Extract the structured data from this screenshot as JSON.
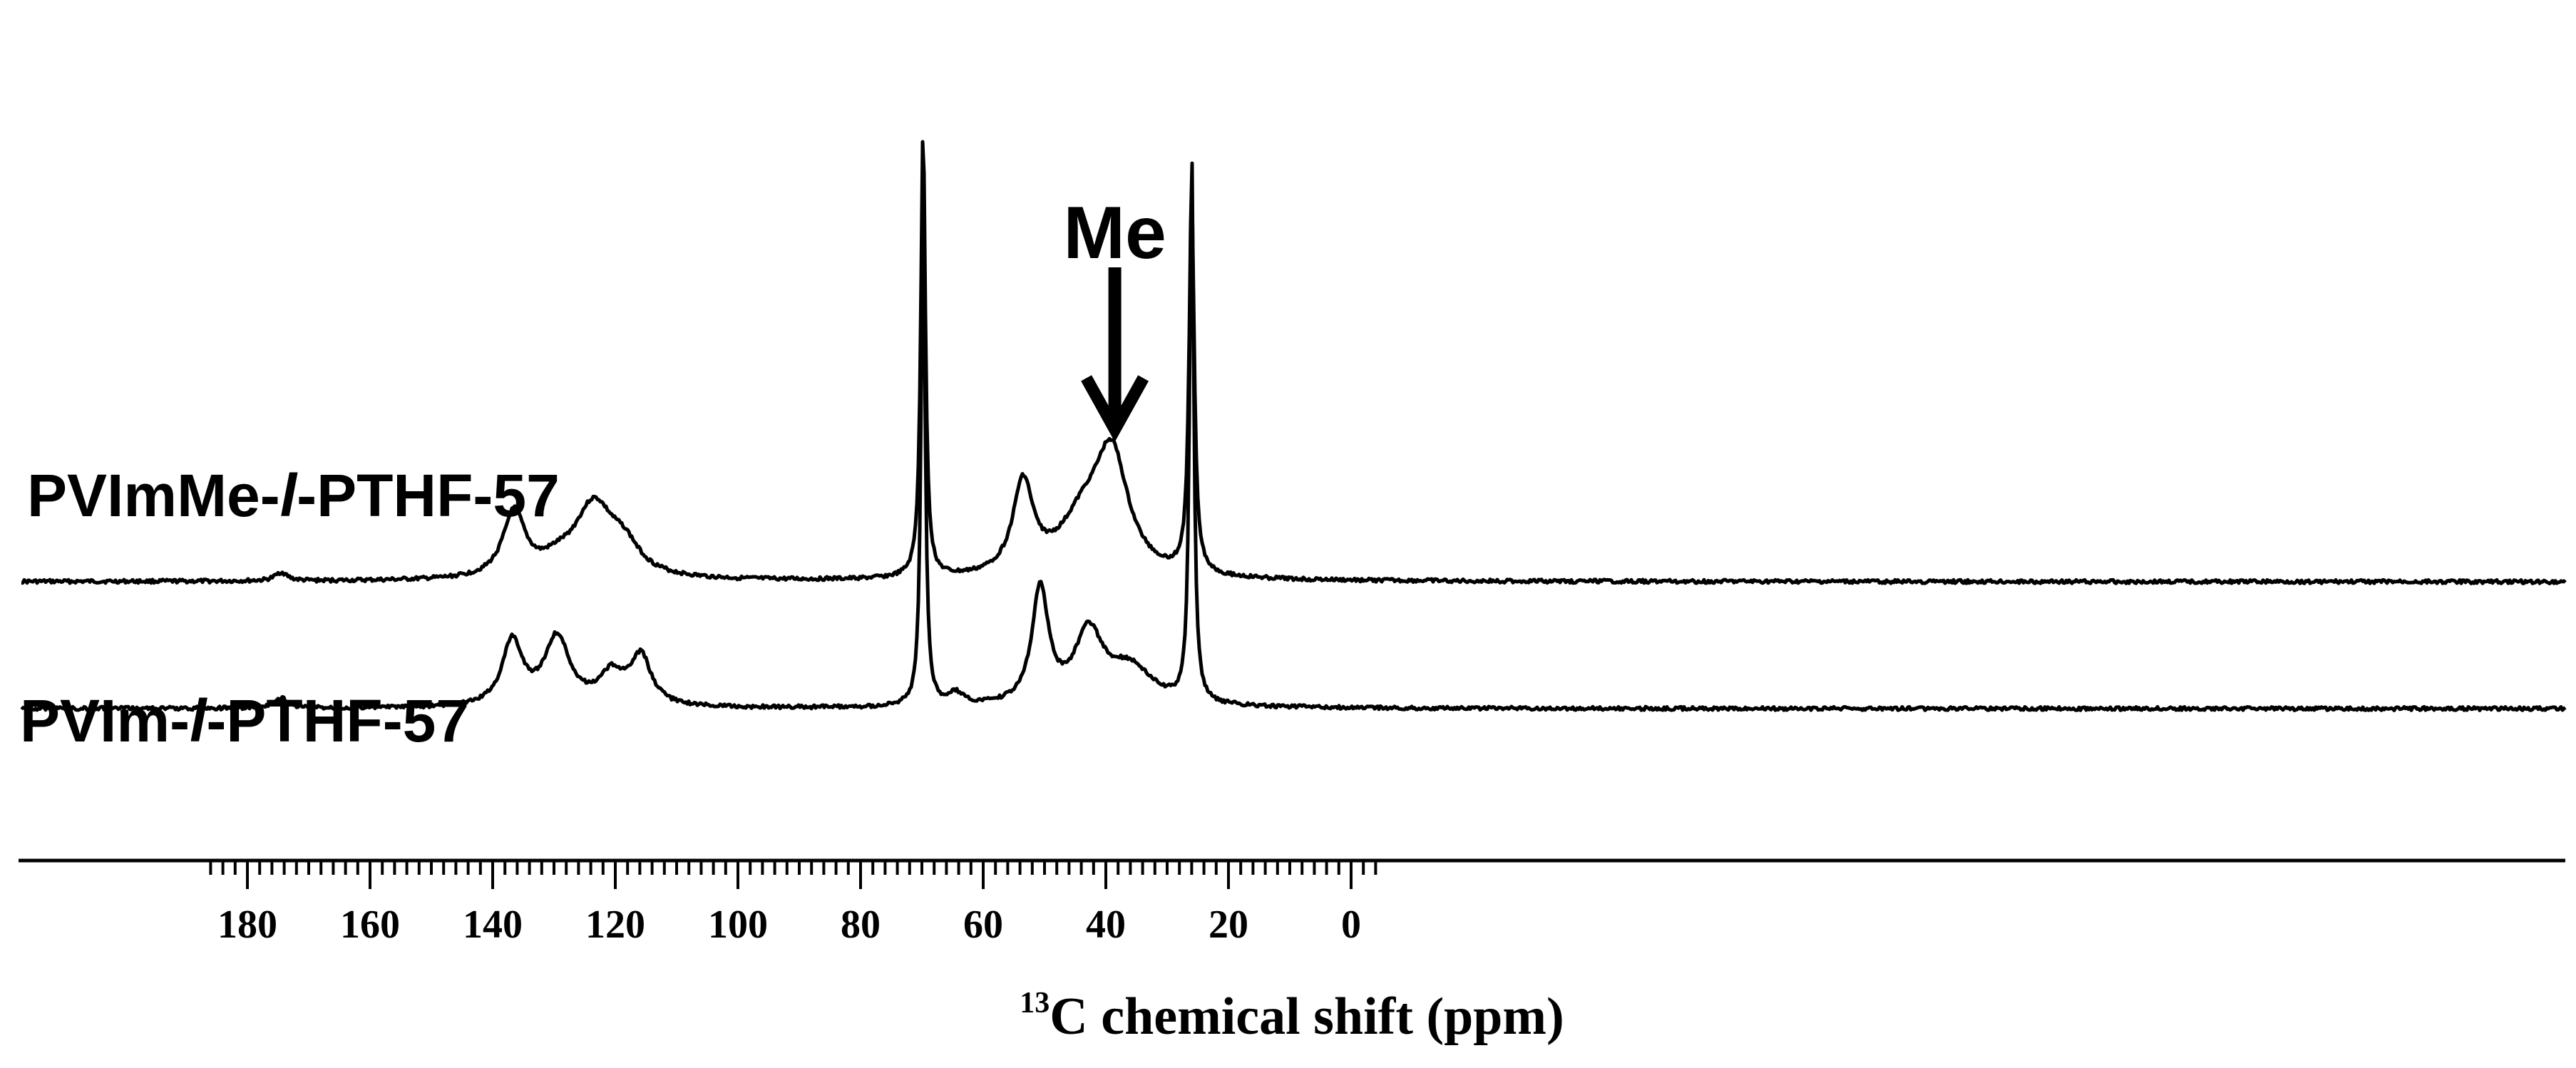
{
  "chart_data": {
    "type": "line",
    "title": "",
    "xlabel": {
      "superscript": "13",
      "text": "C chemical shift (ppm)"
    },
    "ylabel": "",
    "x_axis_reversed": true,
    "xlim": [
      186,
      -5
    ],
    "major_ticks": [
      180,
      160,
      140,
      120,
      100,
      80,
      60,
      40,
      20,
      0
    ],
    "major_tick_labels": [
      "180",
      "160",
      "140",
      "120",
      "100",
      "80",
      "60",
      "40",
      "20",
      "0"
    ],
    "minor_tick_step": 2,
    "y_axis_shown": false,
    "grid": false,
    "legend": "none (series labels placed beside traces)",
    "series": [
      {
        "name": "PVImMe-l-PTHF-57",
        "label_prefix": "PVImMe-",
        "label_italic": "l",
        "label_suffix": "-PTHF-57",
        "baseline_level": 1.0,
        "peaks": [
          {
            "ppm": 174.5,
            "height": 0.05,
            "width": 1.2
          },
          {
            "ppm": 136.5,
            "height": 0.38,
            "width": 2.2
          },
          {
            "ppm": 129.5,
            "height": 0.06,
            "width": 3.0
          },
          {
            "ppm": 123.5,
            "height": 0.43,
            "width": 4.0
          },
          {
            "ppm": 118.5,
            "height": 0.14,
            "width": 3.0
          },
          {
            "ppm": 69.8,
            "height": 2.62,
            "width": 0.45
          },
          {
            "ppm": 53.5,
            "height": 0.53,
            "width": 2.0
          },
          {
            "ppm": 43.5,
            "height": 0.32,
            "width": 5.0
          },
          {
            "ppm": 39.0,
            "height": 0.64,
            "width": 3.2
          },
          {
            "ppm": 26.0,
            "height": 2.22,
            "width": 0.5
          }
        ]
      },
      {
        "name": "PVIm-l-PTHF-57",
        "label_prefix": "PVIm-",
        "label_italic": "l",
        "label_suffix": "-PTHF-57",
        "baseline_level": 0.0,
        "peaks": [
          {
            "ppm": 174.5,
            "height": 0.06,
            "width": 1.3
          },
          {
            "ppm": 136.8,
            "height": 0.38,
            "width": 2.0
          },
          {
            "ppm": 129.5,
            "height": 0.4,
            "width": 2.5
          },
          {
            "ppm": 120.5,
            "height": 0.18,
            "width": 2.5
          },
          {
            "ppm": 115.8,
            "height": 0.28,
            "width": 2.0
          },
          {
            "ppm": 69.8,
            "height": 2.93,
            "width": 0.4
          },
          {
            "ppm": 64.5,
            "height": 0.07,
            "width": 1.5
          },
          {
            "ppm": 50.7,
            "height": 0.68,
            "width": 1.6
          },
          {
            "ppm": 42.8,
            "height": 0.41,
            "width": 2.8
          },
          {
            "ppm": 36.0,
            "height": 0.22,
            "width": 4.5
          },
          {
            "ppm": 26.0,
            "height": 3.23,
            "width": 0.4
          }
        ]
      }
    ],
    "annotations": [
      {
        "text": "Me",
        "arrow_to_ppm": 39.0,
        "series": "PVImMe-l-PTHF-57"
      }
    ]
  },
  "colors": {
    "trace": "#000000",
    "background": "#ffffff"
  }
}
